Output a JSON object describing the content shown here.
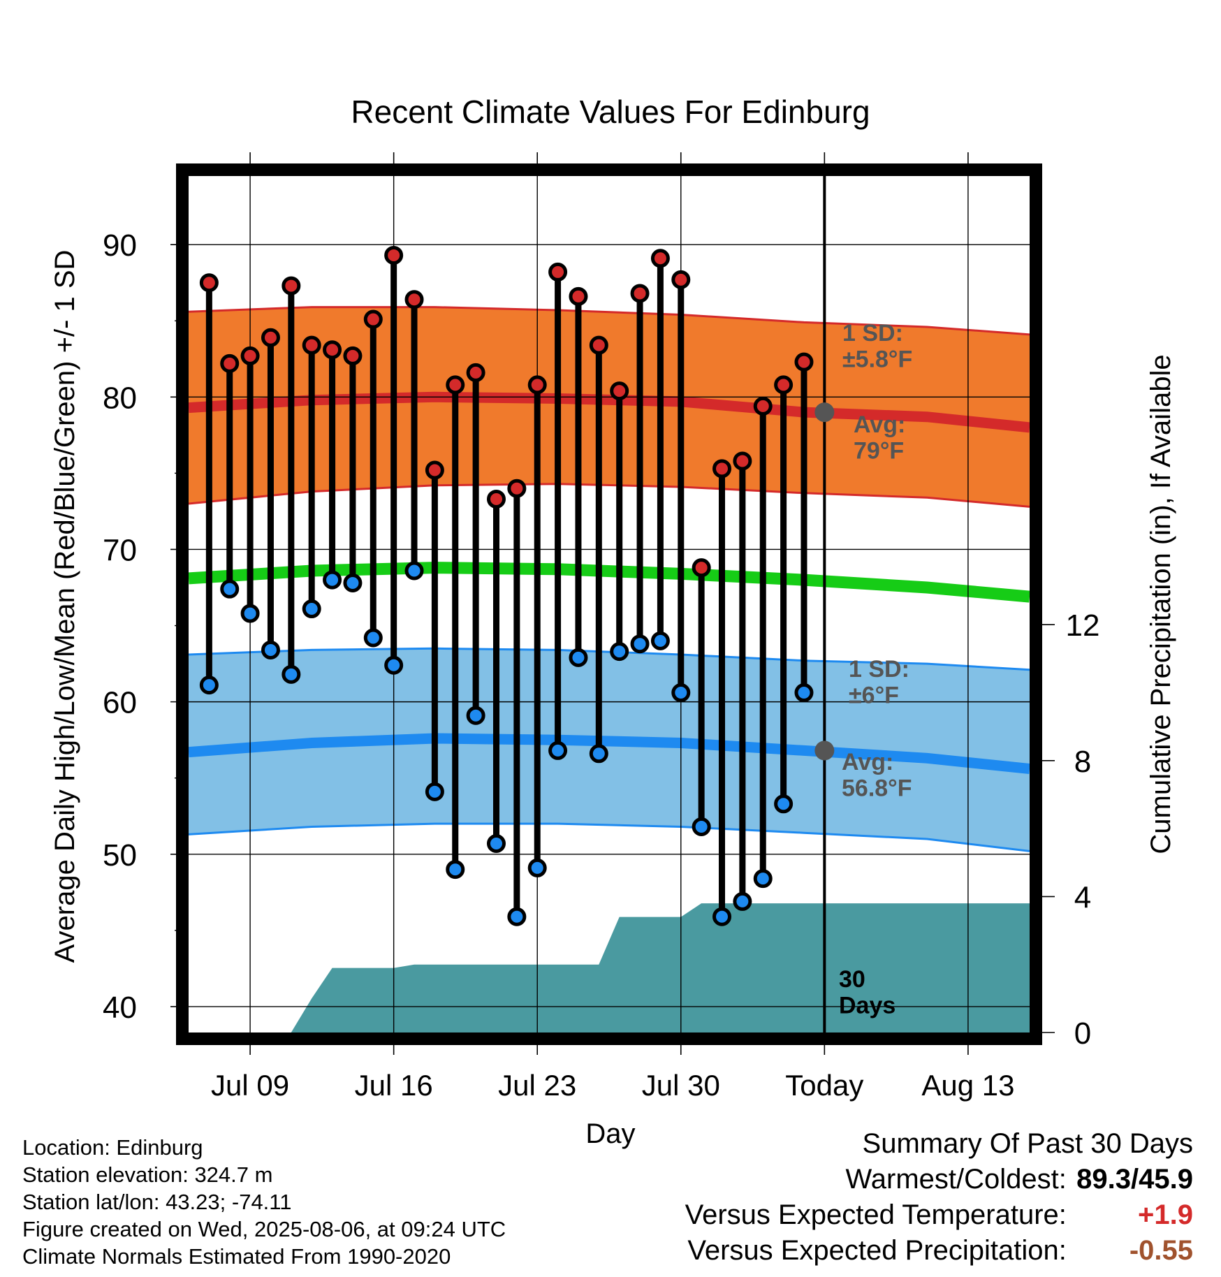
{
  "chart_data": {
    "type": "line",
    "title": "Recent Climate Values For Edinburg",
    "xlabel": "Day",
    "ylabel_left": "Average Daily High/Low/Mean (Red/Blue/Green) +/- 1 SD",
    "ylabel_right": "Cumulative Precipitation (in), If Available",
    "ylim": [
      38.3,
      94.5
    ],
    "ylim_right": [
      0,
      25.2
    ],
    "y_ticks": [
      "40",
      "50",
      "60",
      "70",
      "80",
      "90"
    ],
    "y_ticks_right": [
      "0",
      "4",
      "8",
      "12"
    ],
    "x_ticks": [
      "Jul 09",
      "Jul 16",
      "Jul 23",
      "Jul 30",
      "Today",
      "Aug 13"
    ],
    "today_marker_label": "30\nDays",
    "x_domain": [
      "2025-07-06",
      "2025-08-16"
    ],
    "grid": true,
    "days": [
      "2025-07-07",
      "2025-07-08",
      "2025-07-09",
      "2025-07-10",
      "2025-07-11",
      "2025-07-12",
      "2025-07-13",
      "2025-07-14",
      "2025-07-15",
      "2025-07-16",
      "2025-07-17",
      "2025-07-18",
      "2025-07-19",
      "2025-07-20",
      "2025-07-21",
      "2025-07-22",
      "2025-07-23",
      "2025-07-24",
      "2025-07-25",
      "2025-07-26",
      "2025-07-27",
      "2025-07-28",
      "2025-07-29",
      "2025-07-30",
      "2025-07-31",
      "2025-08-01",
      "2025-08-02",
      "2025-08-03",
      "2025-08-04",
      "2025-08-05"
    ],
    "daily_high": [
      87.5,
      82.2,
      82.7,
      83.9,
      87.3,
      83.4,
      83.1,
      82.7,
      85.1,
      89.3,
      86.4,
      75.2,
      80.8,
      81.6,
      73.3,
      74.0,
      80.8,
      88.2,
      86.6,
      83.4,
      80.4,
      86.8,
      89.1,
      87.7,
      68.8,
      75.3,
      75.8,
      79.4,
      80.8,
      82.3
    ],
    "daily_low": [
      61.1,
      67.4,
      65.8,
      63.4,
      61.8,
      66.1,
      68.0,
      67.8,
      64.2,
      62.4,
      68.6,
      54.1,
      49.0,
      59.1,
      50.7,
      45.9,
      49.1,
      56.8,
      62.9,
      56.6,
      63.3,
      63.8,
      64.0,
      60.6,
      51.8,
      45.9,
      46.9,
      48.4,
      53.3,
      60.6
    ],
    "normals": {
      "days": [
        "2025-07-06",
        "2025-07-12",
        "2025-07-18",
        "2025-07-24",
        "2025-07-30",
        "2025-08-05",
        "2025-08-11",
        "2025-08-16"
      ],
      "high_avg": [
        79.3,
        79.8,
        80.0,
        79.9,
        79.7,
        79.0,
        78.7,
        78.0
      ],
      "high_upper": [
        85.6,
        85.9,
        85.9,
        85.7,
        85.4,
        84.9,
        84.6,
        84.1
      ],
      "high_lower": [
        73.0,
        73.8,
        74.2,
        74.3,
        74.1,
        73.7,
        73.4,
        72.8
      ],
      "mean_avg": [
        68.1,
        68.6,
        68.8,
        68.7,
        68.4,
        68.0,
        67.5,
        66.9
      ],
      "low_avg": [
        56.7,
        57.3,
        57.6,
        57.5,
        57.3,
        56.8,
        56.3,
        55.6
      ],
      "low_upper": [
        63.1,
        63.4,
        63.5,
        63.4,
        63.1,
        62.7,
        62.5,
        62.1
      ],
      "low_lower": [
        51.3,
        51.8,
        52.0,
        52.0,
        51.8,
        51.4,
        51.0,
        50.2
      ]
    },
    "precip_cumulative": {
      "days": [
        "2025-07-11",
        "2025-07-12",
        "2025-07-13",
        "2025-07-16",
        "2025-07-17",
        "2025-07-21",
        "2025-07-25",
        "2025-07-26",
        "2025-07-27",
        "2025-07-30",
        "2025-07-31",
        "2025-08-16"
      ],
      "values": [
        0.0,
        1.0,
        1.9,
        1.9,
        2.0,
        2.0,
        2.0,
        2.0,
        3.4,
        3.4,
        3.8,
        3.8
      ]
    },
    "today": {
      "high_avg": 79,
      "low_avg": 56.8
    },
    "colors": {
      "high_band": "#f07a2c",
      "high_line": "#d42a2a",
      "low_band": "#82c0e6",
      "low_line": "#1e8af0",
      "mean_line": "#16cc16",
      "precip": "#4a9aa0",
      "high_point": "#d42a2a",
      "low_point": "#1e8af0",
      "today_point": "#555555"
    }
  },
  "annotations": {
    "high_sd": "1 SD:\n±5.8°F",
    "high_avg": "Avg:\n79°F",
    "low_sd": "1 SD:\n±6°F",
    "low_avg": "Avg:\n56.8°F"
  },
  "footer": {
    "location": "Location: Edinburg",
    "elevation": "Station elevation: 324.7 m",
    "latlon": "Station lat/lon: 43.23; -74.11",
    "created": "Figure created on Wed, 2025-08-06, at 09:24 UTC",
    "normals": "Climate Normals Estimated From 1990-2020"
  },
  "summary": {
    "title": "Summary Of Past 30 Days",
    "warmest_label": "Warmest/Coldest:",
    "warmest_value": "89.3/45.9",
    "temp_label": "Versus Expected Temperature:",
    "temp_value": "+1.9",
    "temp_color": "#d42a2a",
    "precip_label": "Versus Expected Precipitation:",
    "precip_value": "-0.55",
    "precip_color": "#a0522d"
  }
}
